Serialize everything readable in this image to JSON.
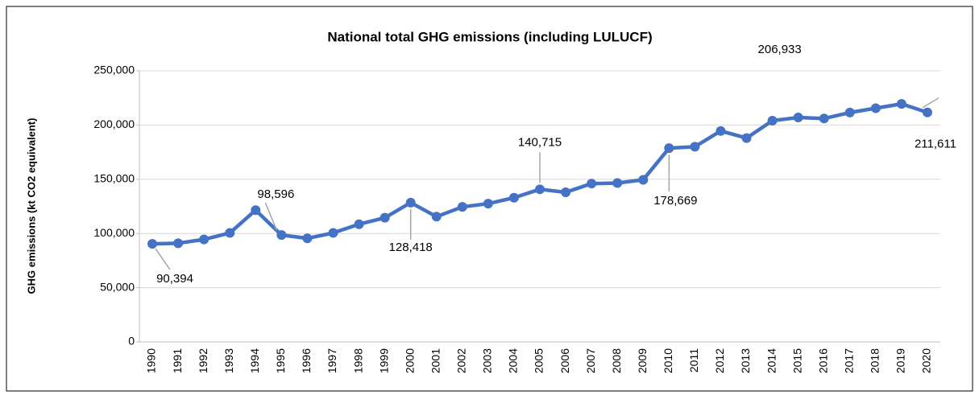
{
  "chart_data": {
    "type": "line",
    "title": "National total GHG emissions (including LULUCF)",
    "y_label": "GHG emissions (kt CO2 equivalent)",
    "categories": [
      "1990",
      "1991",
      "1992",
      "1993",
      "1994",
      "1995",
      "1996",
      "1997",
      "1998",
      "1999",
      "2000",
      "2001",
      "2002",
      "2003",
      "2004",
      "2005",
      "2006",
      "2007",
      "2008",
      "2009",
      "2010",
      "2011",
      "2012",
      "2013",
      "2014",
      "2015",
      "2016",
      "2017",
      "2018",
      "2019",
      "2020"
    ],
    "series": [
      {
        "name": "National total GHG emissions",
        "color": "#4472c4",
        "values": [
          90394,
          91000,
          94500,
          100500,
          121500,
          98596,
          95500,
          100500,
          108500,
          114500,
          128418,
          115500,
          124500,
          127500,
          133000,
          140715,
          138000,
          146000,
          146500,
          149500,
          178669,
          180000,
          194500,
          188000,
          204000,
          206933,
          206000,
          211500,
          215500,
          219500,
          211611
        ],
        "value_labels": [
          "90,394",
          null,
          null,
          null,
          null,
          "98,596",
          null,
          null,
          null,
          null,
          "128,418",
          null,
          null,
          null,
          null,
          "140,715",
          null,
          null,
          null,
          null,
          "178,669",
          null,
          null,
          null,
          null,
          "206,933",
          null,
          null,
          null,
          null,
          "211,611"
        ]
      }
    ],
    "ylim": [
      0,
      250000
    ],
    "yticks": [
      0,
      {
        "value": 50000,
        "label": "50,000"
      },
      {
        "value": 100000,
        "label": "100,000"
      },
      {
        "value": 150000,
        "label": "150,000"
      },
      {
        "value": 200000,
        "label": "200,000"
      },
      {
        "value": 250000,
        "label": "250,000"
      }
    ],
    "grid": true
  }
}
